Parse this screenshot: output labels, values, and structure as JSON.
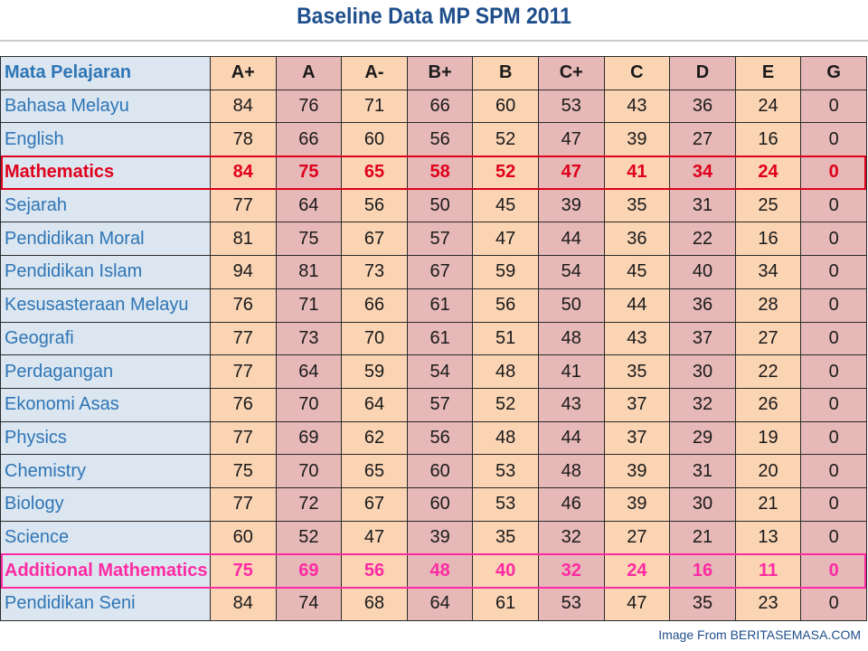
{
  "title": "Baseline Data MP SPM 2011",
  "header": {
    "subject_label": "Mata Pelajaran",
    "grades": [
      "A+",
      "A",
      "A-",
      "B+",
      "B",
      "C+",
      "C",
      "D",
      "E",
      "G"
    ]
  },
  "rows": [
    {
      "subject": "Bahasa Melayu",
      "values": [
        84,
        76,
        71,
        66,
        60,
        53,
        43,
        36,
        24,
        0
      ]
    },
    {
      "subject": "English",
      "values": [
        78,
        66,
        60,
        56,
        52,
        47,
        39,
        27,
        16,
        0
      ]
    },
    {
      "subject": "Mathematics",
      "values": [
        84,
        75,
        65,
        58,
        52,
        47,
        41,
        34,
        24,
        0
      ],
      "highlight": "red"
    },
    {
      "subject": "Sejarah",
      "values": [
        77,
        64,
        56,
        50,
        45,
        39,
        35,
        31,
        25,
        0
      ]
    },
    {
      "subject": "Pendidikan Moral",
      "values": [
        81,
        75,
        67,
        57,
        47,
        44,
        36,
        22,
        16,
        0
      ]
    },
    {
      "subject": "Pendidikan Islam",
      "values": [
        94,
        81,
        73,
        67,
        59,
        54,
        45,
        40,
        34,
        0
      ]
    },
    {
      "subject": "Kesusasteraan Melayu",
      "values": [
        76,
        71,
        66,
        61,
        56,
        50,
        44,
        36,
        28,
        0
      ]
    },
    {
      "subject": "Geografi",
      "values": [
        77,
        73,
        70,
        61,
        51,
        48,
        43,
        37,
        27,
        0
      ]
    },
    {
      "subject": "Perdagangan",
      "values": [
        77,
        64,
        59,
        54,
        48,
        41,
        35,
        30,
        22,
        0
      ]
    },
    {
      "subject": "Ekonomi Asas",
      "values": [
        76,
        70,
        64,
        57,
        52,
        43,
        37,
        32,
        26,
        0
      ]
    },
    {
      "subject": "Physics",
      "values": [
        77,
        69,
        62,
        56,
        48,
        44,
        37,
        29,
        19,
        0
      ]
    },
    {
      "subject": "Chemistry",
      "values": [
        75,
        70,
        65,
        60,
        53,
        48,
        39,
        31,
        20,
        0
      ]
    },
    {
      "subject": "Biology",
      "values": [
        77,
        72,
        67,
        60,
        53,
        46,
        39,
        30,
        21,
        0
      ]
    },
    {
      "subject": "Science",
      "values": [
        60,
        52,
        47,
        39,
        35,
        32,
        27,
        21,
        13,
        0
      ]
    },
    {
      "subject": "Additional Mathematics",
      "values": [
        75,
        69,
        56,
        48,
        40,
        32,
        24,
        16,
        11,
        0
      ],
      "highlight": "magenta"
    },
    {
      "subject": "Pendidikan Seni",
      "values": [
        84,
        74,
        68,
        64,
        61,
        53,
        47,
        35,
        23,
        0
      ]
    }
  ],
  "credit": "Image From BERITASEMASA.COM",
  "colors": {
    "title": "#1f4e8c",
    "subject_bg": "#dce6f0",
    "subject_text": "#2e75b6",
    "peach": "#fbd4b4",
    "pink": "#e6b8b7",
    "highlight_red": "#e0001b",
    "highlight_magenta": "#ff2aa3"
  }
}
